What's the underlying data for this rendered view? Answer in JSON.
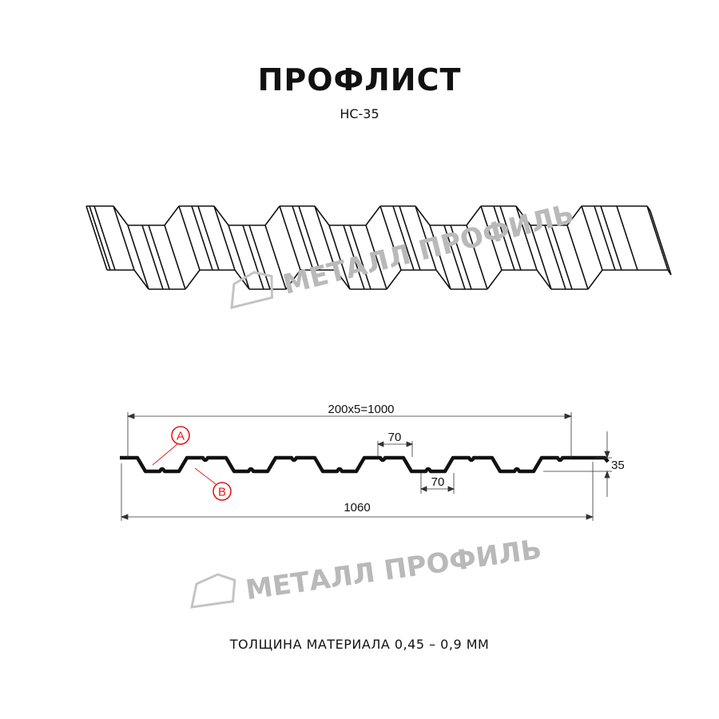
{
  "title": "ПРОФЛИСТ",
  "subtitle": "НС-35",
  "thickness_note": "ТОЛЩИНА МАТЕРИАЛА 0,45 – 0,9 ММ",
  "watermark": "МЕТАЛЛ ПРОФИЛЬ",
  "dimensions": {
    "working_width": "200x5=1000",
    "total_width": "1060",
    "crest_width": "70",
    "trough_width": "70",
    "height": "35"
  },
  "markers": {
    "a": "A",
    "b": "B"
  },
  "colors": {
    "marker": "#e3161b",
    "watermark": "#b9b9b9",
    "line": "#111111"
  }
}
